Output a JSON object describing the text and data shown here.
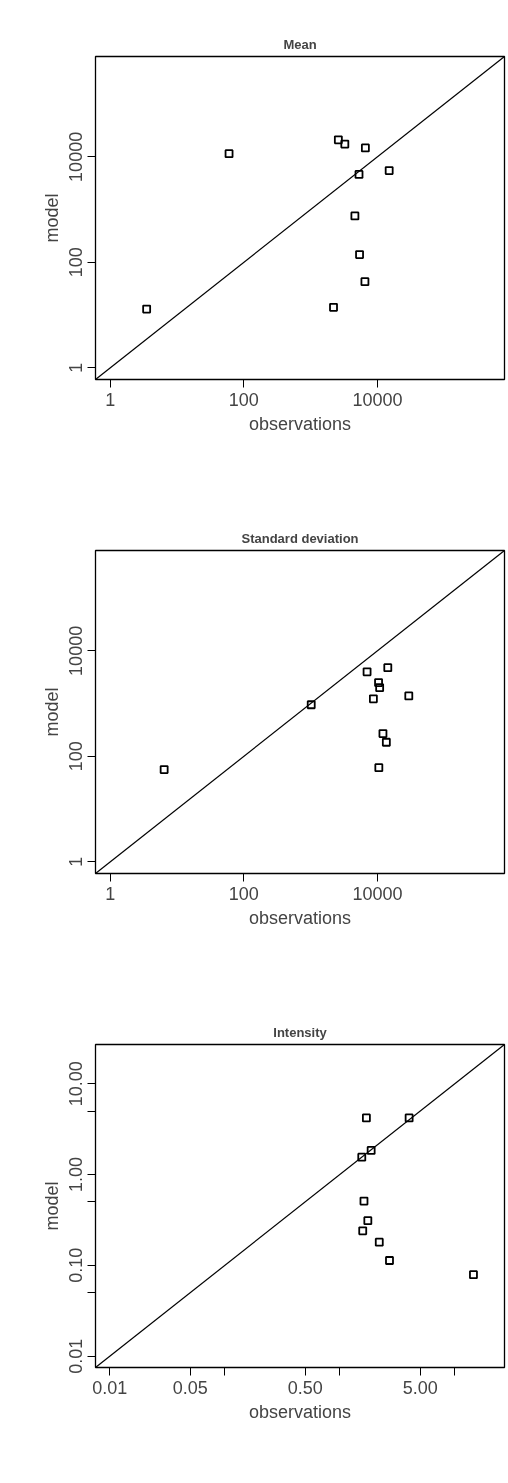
{
  "chart_data": [
    {
      "type": "scatter",
      "title": "Mean",
      "xlabel": "observations",
      "ylabel": "model",
      "log": "xy",
      "xlim": [
        0.6,
        800000
      ],
      "ylim": [
        0.6,
        800000
      ],
      "xticks": [
        1,
        100,
        10000
      ],
      "yticks": [
        1,
        100,
        10000
      ],
      "series": [
        {
          "type": "scatter",
          "color": "#000000",
          "marker": "square",
          "x": [
            3.5,
            60,
            2600,
            3250,
            6600,
            5300,
            15000,
            4600,
            5400,
            6500,
            2200
          ],
          "values": [
            13,
            11500,
            21000,
            17500,
            14800,
            4650,
            5500,
            760,
            140,
            43,
            14
          ]
        },
        {
          "type": "line",
          "color": "#000000",
          "marker": "none",
          "line_style": "solid",
          "x": [
            0.6,
            800000
          ],
          "values": [
            0.6,
            800000
          ]
        }
      ]
    },
    {
      "type": "scatter",
      "title": "Standard deviation",
      "xlabel": "observations",
      "ylabel": "model",
      "log": "xy",
      "xlim": [
        0.6,
        800000
      ],
      "ylim": [
        0.6,
        800000
      ],
      "xticks": [
        1,
        100,
        10000
      ],
      "yticks": [
        1,
        100,
        10000
      ],
      "series": [
        {
          "type": "scatter",
          "color": "#000000",
          "marker": "square",
          "x": [
            6.4,
            1020,
            7000,
            14300,
            10400,
            10800,
            8700,
            29500,
            12100,
            13600,
            10500
          ],
          "values": [
            56,
            950,
            4000,
            4800,
            2500,
            2000,
            1230,
            1400,
            270,
            185,
            61
          ]
        },
        {
          "type": "line",
          "color": "#000000",
          "marker": "none",
          "line_style": "solid",
          "x": [
            0.6,
            800000
          ],
          "values": [
            0.6,
            800000
          ]
        }
      ]
    },
    {
      "type": "scatter",
      "title": "Intensity",
      "xlabel": "observations",
      "ylabel": "model",
      "log": "xy",
      "xlim": [
        0.0075,
        27
      ],
      "ylim": [
        0.0075,
        27
      ],
      "xticks": [
        {
          "value": 0.01,
          "label": "0.01"
        },
        {
          "value": 0.05,
          "label": "0.05"
        },
        {
          "value": 0.1,
          "label": null
        },
        {
          "value": 0.5,
          "label": "0.50"
        },
        {
          "value": 1,
          "label": null
        },
        {
          "value": 5,
          "label": "5.00"
        },
        {
          "value": 10,
          "label": null
        }
      ],
      "yticks": [
        {
          "value": 0.01,
          "label": "0.01"
        },
        {
          "value": 0.05,
          "label": null
        },
        {
          "value": 0.1,
          "label": "0.10"
        },
        {
          "value": 0.5,
          "label": null
        },
        {
          "value": 1,
          "label": "1.00"
        },
        {
          "value": 5,
          "label": null
        },
        {
          "value": 10,
          "label": "10.00"
        }
      ],
      "series": [
        {
          "type": "scatter",
          "color": "#000000",
          "marker": "square",
          "x": [
            1.7,
            4.0,
            1.87,
            1.55,
            1.62,
            1.75,
            1.58,
            2.2,
            2.7,
            14.5
          ],
          "values": [
            4.2,
            4.2,
            1.84,
            1.55,
            0.51,
            0.31,
            0.24,
            0.18,
            0.113,
            0.079
          ]
        },
        {
          "type": "line",
          "color": "#000000",
          "marker": "none",
          "line_style": "solid",
          "x": [
            0.0075,
            27
          ],
          "values": [
            0.0075,
            27
          ]
        }
      ]
    }
  ]
}
